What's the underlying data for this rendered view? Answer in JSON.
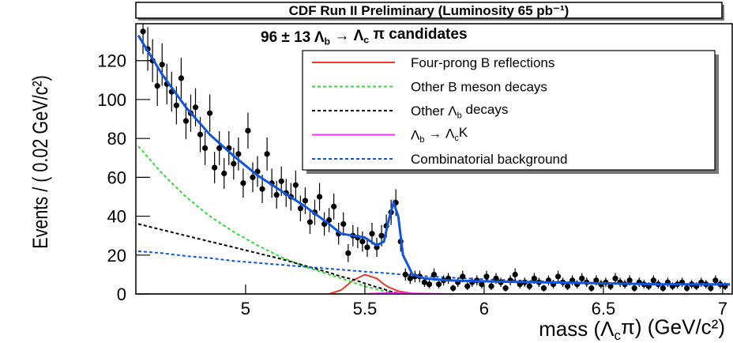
{
  "chart_data": {
    "type": "errorbar",
    "title": "CDF Run II Preliminary (Luminosity 65 pb⁻¹)",
    "annotation": [
      "96 ± 13   Λ",
      "b",
      " → Λ",
      "c",
      " π candidates"
    ],
    "y_label": "Events / ( 0.02 GeV/c²)",
    "x_label": [
      "mass (Λ",
      "c",
      "π) (GeV/c²)"
    ],
    "xlim": [
      4.54,
      7.04
    ],
    "xticks": [
      5,
      5.5,
      6,
      6.5,
      7
    ],
    "ylim": [
      0,
      139
    ],
    "yticks": [
      0,
      20,
      40,
      60,
      80,
      100,
      120
    ],
    "color": "#000000",
    "x": [
      4.57,
      4.59,
      4.61,
      4.63,
      4.65,
      4.67,
      4.69,
      4.71,
      4.73,
      4.75,
      4.77,
      4.79,
      4.81,
      4.83,
      4.85,
      4.87,
      4.89,
      4.91,
      4.93,
      4.95,
      4.97,
      4.99,
      5.01,
      5.03,
      5.05,
      5.07,
      5.09,
      5.11,
      5.13,
      5.15,
      5.17,
      5.19,
      5.21,
      5.23,
      5.25,
      5.27,
      5.29,
      5.31,
      5.33,
      5.35,
      5.37,
      5.39,
      5.41,
      5.43,
      5.45,
      5.47,
      5.49,
      5.51,
      5.53,
      5.55,
      5.57,
      5.59,
      5.61,
      5.63,
      5.65,
      5.67,
      5.69,
      5.71,
      5.73,
      5.75,
      5.77,
      5.79,
      5.81,
      5.83,
      5.85,
      5.87,
      5.89,
      5.91,
      5.93,
      5.95,
      5.97,
      5.99,
      6.01,
      6.03,
      6.05,
      6.07,
      6.09,
      6.11,
      6.13,
      6.15,
      6.17,
      6.19,
      6.21,
      6.23,
      6.25,
      6.27,
      6.29,
      6.31,
      6.33,
      6.35,
      6.37,
      6.39,
      6.41,
      6.43,
      6.45,
      6.47,
      6.49,
      6.51,
      6.53,
      6.55,
      6.57,
      6.59,
      6.61,
      6.63,
      6.65,
      6.67,
      6.69,
      6.71,
      6.73,
      6.75,
      6.77,
      6.79,
      6.81,
      6.83,
      6.85,
      6.87,
      6.89,
      6.91,
      6.93,
      6.95,
      6.97,
      6.99,
      7.01
    ],
    "values": [
      135,
      126,
      120,
      107,
      118,
      108,
      104,
      97,
      111,
      89,
      93,
      96,
      82,
      75,
      93,
      65,
      75,
      62,
      75,
      67,
      72,
      57,
      84,
      60,
      63,
      54,
      72,
      57,
      51,
      58,
      52,
      50,
      56,
      44,
      48,
      37,
      42,
      50,
      36,
      38,
      45,
      31,
      36,
      21,
      30,
      29,
      27,
      24,
      31,
      24,
      30,
      35,
      42,
      47,
      27,
      10,
      8,
      9,
      9,
      6,
      5,
      10,
      5,
      7,
      8,
      3,
      6,
      9,
      4,
      6,
      7,
      5,
      9,
      4,
      8,
      6,
      3,
      7,
      10,
      5,
      6,
      4,
      8,
      6,
      3,
      7,
      5,
      9,
      6,
      4,
      7,
      5,
      8,
      6,
      3,
      7,
      5,
      6,
      4,
      8,
      6,
      5,
      7,
      3,
      6,
      5,
      4,
      7,
      5,
      3,
      6,
      4,
      5,
      6,
      3,
      5,
      4,
      6,
      5,
      3,
      7,
      5,
      4
    ],
    "errors": [
      11.6,
      11.2,
      11,
      10.3,
      10.9,
      10.4,
      10.2,
      9.8,
      10.5,
      9.4,
      9.6,
      9.8,
      9.1,
      8.7,
      9.6,
      8.1,
      8.7,
      7.9,
      8.7,
      8.2,
      8.5,
      7.5,
      9.2,
      7.7,
      7.9,
      7.3,
      8.5,
      7.5,
      7.1,
      7.6,
      7.2,
      7.1,
      7.5,
      6.6,
      6.9,
      6.1,
      6.5,
      7.1,
      6,
      6.2,
      6.7,
      5.6,
      6,
      4.6,
      5.5,
      5.4,
      5.2,
      4.9,
      5.6,
      4.9,
      5.5,
      5.9,
      6.5,
      6.9,
      5.2,
      3.2,
      2.8,
      3,
      3,
      2.4,
      2.2,
      3.2,
      2.2,
      2.6,
      2.8,
      1.7,
      2.4,
      3,
      2,
      2.4,
      2.6,
      2.2,
      3,
      2,
      2.8,
      2.4,
      1.7,
      2.6,
      3.2,
      2.2,
      2.4,
      2,
      2.8,
      2.4,
      1.7,
      2.6,
      2.2,
      3,
      2.4,
      2,
      2.6,
      2.2,
      2.8,
      2.4,
      1.7,
      2.6,
      2.2,
      2.4,
      2,
      2.8,
      2.4,
      2.2,
      2.6,
      1.7,
      2.4,
      2.2,
      2,
      2.6,
      2.2,
      1.7,
      2.4,
      2,
      2.2,
      2.4,
      1.7,
      2.2,
      2,
      2.4,
      2.2,
      1.7,
      2.6,
      2.2,
      2
    ],
    "curve_x": [
      4.55,
      4.65,
      4.75,
      4.85,
      4.95,
      5.05,
      5.15,
      5.25,
      5.35,
      5.4,
      5.45,
      5.5,
      5.55,
      5.58,
      5.6,
      5.62,
      5.64,
      5.66,
      5.7,
      5.75,
      5.85,
      6.0,
      6.25,
      6.5,
      6.75,
      7.03
    ],
    "fit": {
      "color": "#1155dd",
      "values": [
        133,
        113,
        96,
        82,
        71,
        61,
        53,
        45,
        36,
        31,
        30,
        29,
        25,
        27,
        38,
        47,
        40,
        20,
        10,
        8,
        7,
        6.5,
        6,
        5.5,
        5,
        5
      ]
    },
    "curves": [
      {
        "name": [
          "Four-prong B reflections"
        ],
        "color": "#e8392b",
        "style": "solid",
        "values": [
          0,
          0,
          0,
          0,
          0,
          0,
          0,
          0,
          0,
          2,
          7,
          10,
          8,
          5,
          3.5,
          2.5,
          1.5,
          1,
          0.3,
          0,
          0,
          0,
          0,
          0,
          0,
          0
        ]
      },
      {
        "name": [
          "Other B meson decays"
        ],
        "color": "#33dd33",
        "style": "dashed",
        "values": [
          76,
          62,
          50,
          40,
          32,
          25,
          19,
          14,
          10,
          8,
          6,
          4,
          2.5,
          1.5,
          1,
          0.6,
          0.3,
          0.1,
          0,
          0,
          0,
          0,
          0,
          0,
          0,
          0
        ]
      },
      {
        "name": [
          "Other Λ",
          "b",
          " decays"
        ],
        "color": "#000000",
        "style": "dashed",
        "values": [
          36,
          33,
          30,
          27,
          24,
          21,
          18,
          14.5,
          11,
          9,
          7.5,
          5.5,
          3.5,
          2.5,
          1.5,
          1,
          0.5,
          0.2,
          0,
          0,
          0,
          0,
          0,
          0,
          0,
          0
        ]
      },
      {
        "name": [
          "Λ",
          "b",
          " → Λ",
          "c",
          "K"
        ],
        "color": "#ff33ff",
        "style": "solid",
        "values": [
          0,
          0,
          0,
          0,
          0,
          0,
          0,
          0,
          0,
          0,
          0,
          0,
          0.3,
          0.5,
          0.6,
          0.6,
          0.5,
          0.4,
          0.3,
          0.2,
          0,
          0,
          0,
          0,
          0,
          0
        ]
      },
      {
        "name": [
          "Combinatorial background"
        ],
        "color": "#1155dd",
        "style": "dashed",
        "values": [
          22,
          21,
          19.5,
          18.5,
          17,
          16,
          15,
          14,
          13,
          12.5,
          12,
          11.5,
          11,
          10.8,
          10.6,
          10.4,
          10.2,
          10,
          9.6,
          9.2,
          8.5,
          7.6,
          6.5,
          5.7,
          5.1,
          4.6
        ]
      }
    ]
  }
}
